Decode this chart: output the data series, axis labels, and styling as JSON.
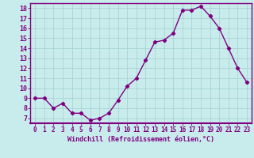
{
  "x": [
    0,
    1,
    2,
    3,
    4,
    5,
    6,
    7,
    8,
    9,
    10,
    11,
    12,
    13,
    14,
    15,
    16,
    17,
    18,
    19,
    20,
    21,
    22,
    23
  ],
  "y": [
    9,
    9,
    8,
    8.5,
    7.5,
    7.5,
    6.8,
    7,
    7.5,
    8.8,
    10.2,
    11,
    12.8,
    14.6,
    14.8,
    15.5,
    17.8,
    17.8,
    18.2,
    17.2,
    16,
    14,
    12,
    10.6
  ],
  "line_color": "#800080",
  "marker": "D",
  "markersize": 2.2,
  "linewidth": 1.0,
  "xlabel": "Windchill (Refroidissement éolien,°C)",
  "xlim": [
    -0.5,
    23.5
  ],
  "ylim": [
    6.5,
    18.5
  ],
  "yticks": [
    7,
    8,
    9,
    10,
    11,
    12,
    13,
    14,
    15,
    16,
    17,
    18
  ],
  "xticks": [
    0,
    1,
    2,
    3,
    4,
    5,
    6,
    7,
    8,
    9,
    10,
    11,
    12,
    13,
    14,
    15,
    16,
    17,
    18,
    19,
    20,
    21,
    22,
    23
  ],
  "background_color": "#c8ecec",
  "grid_color": "#a8d4d4",
  "axis_color": "#800080",
  "font_color": "#800080",
  "xlabel_fontsize": 6.0,
  "tick_fontsize": 5.5,
  "ytick_fontsize": 6.0
}
